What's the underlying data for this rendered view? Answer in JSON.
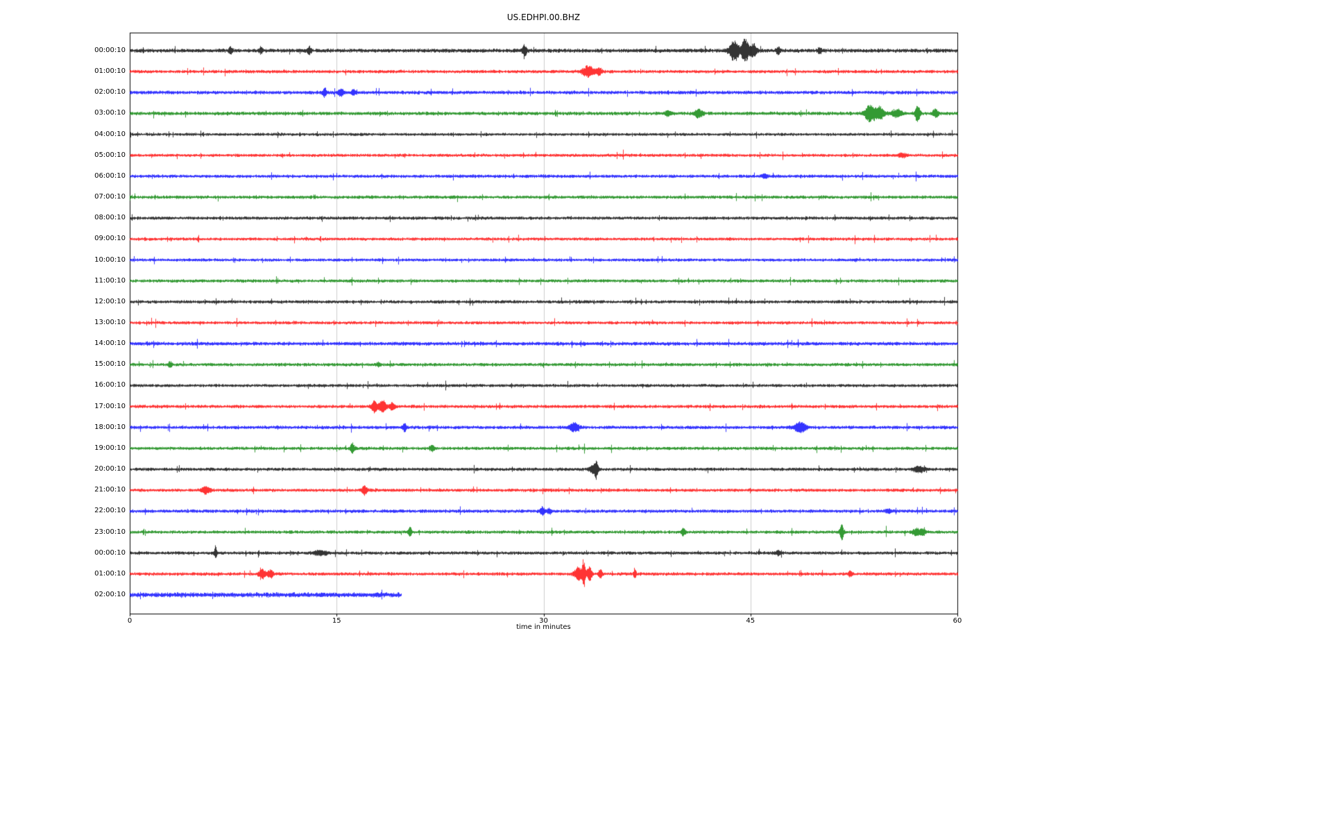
{
  "title": "US.EDHPI.00.BHZ",
  "chart_data": {
    "type": "line",
    "subtype": "helicorder-dayplot",
    "title": "US.EDHPI.00.BHZ",
    "xlabel": "time in minutes",
    "xlim": [
      0,
      60
    ],
    "x_ticks": [
      0,
      15,
      30,
      45,
      60
    ],
    "grid": "vertical-light",
    "legend": "none",
    "grid_color": "#cccccc",
    "frame_color": "#000000",
    "color_cycle": [
      "#000000",
      "#ff0000",
      "#0000ff",
      "#008000"
    ],
    "rows": [
      {
        "label": "00:00:10",
        "color": "#000000",
        "end": 60,
        "noise": 1.2,
        "events": [
          {
            "t": 7.3,
            "amp": 6,
            "w": 0.08
          },
          {
            "t": 9.5,
            "amp": 5,
            "w": 0.08
          },
          {
            "t": 13.0,
            "amp": 5,
            "w": 0.1
          },
          {
            "t": 28.6,
            "amp": 8,
            "w": 0.12
          },
          {
            "t": 43.8,
            "amp": 14,
            "w": 0.25
          },
          {
            "t": 44.6,
            "amp": 16,
            "w": 0.2
          },
          {
            "t": 45.2,
            "amp": 10,
            "w": 0.15
          },
          {
            "t": 47.0,
            "amp": 6,
            "w": 0.1
          },
          {
            "t": 50.0,
            "amp": 4,
            "w": 0.1
          }
        ]
      },
      {
        "label": "01:00:10",
        "color": "#ff0000",
        "end": 60,
        "noise": 1.0,
        "events": [
          {
            "t": 33.2,
            "amp": 8,
            "w": 0.3
          },
          {
            "t": 34.0,
            "amp": 5,
            "w": 0.15
          }
        ]
      },
      {
        "label": "02:00:10",
        "color": "#0000ff",
        "end": 60,
        "noise": 1.1,
        "events": [
          {
            "t": 14.1,
            "amp": 6,
            "w": 0.1
          },
          {
            "t": 15.3,
            "amp": 5,
            "w": 0.15
          },
          {
            "t": 16.2,
            "amp": 4,
            "w": 0.1
          }
        ]
      },
      {
        "label": "03:00:10",
        "color": "#008000",
        "end": 60,
        "noise": 1.1,
        "events": [
          {
            "t": 39.0,
            "amp": 4,
            "w": 0.15
          },
          {
            "t": 41.2,
            "amp": 6,
            "w": 0.2
          },
          {
            "t": 53.7,
            "amp": 12,
            "w": 0.3
          },
          {
            "t": 54.4,
            "amp": 9,
            "w": 0.2
          },
          {
            "t": 55.6,
            "amp": 5,
            "w": 0.3
          },
          {
            "t": 57.1,
            "amp": 14,
            "w": 0.12
          },
          {
            "t": 58.4,
            "amp": 6,
            "w": 0.15
          }
        ]
      },
      {
        "label": "04:00:10",
        "color": "#000000",
        "end": 60,
        "noise": 0.9,
        "events": []
      },
      {
        "label": "05:00:10",
        "color": "#ff0000",
        "end": 60,
        "noise": 0.95,
        "events": [
          {
            "t": 56.0,
            "amp": 3,
            "w": 0.2
          }
        ]
      },
      {
        "label": "06:00:10",
        "color": "#0000ff",
        "end": 60,
        "noise": 1.0,
        "events": [
          {
            "t": 46.0,
            "amp": 3,
            "w": 0.15
          }
        ]
      },
      {
        "label": "07:00:10",
        "color": "#008000",
        "end": 60,
        "noise": 1.0,
        "events": []
      },
      {
        "label": "08:00:10",
        "color": "#000000",
        "end": 60,
        "noise": 1.0,
        "events": []
      },
      {
        "label": "09:00:10",
        "color": "#ff0000",
        "end": 60,
        "noise": 0.95,
        "events": []
      },
      {
        "label": "10:00:10",
        "color": "#0000ff",
        "end": 60,
        "noise": 0.95,
        "events": []
      },
      {
        "label": "11:00:10",
        "color": "#008000",
        "end": 60,
        "noise": 1.0,
        "events": []
      },
      {
        "label": "12:00:10",
        "color": "#000000",
        "end": 60,
        "noise": 1.0,
        "events": []
      },
      {
        "label": "13:00:10",
        "color": "#ff0000",
        "end": 60,
        "noise": 0.95,
        "events": []
      },
      {
        "label": "14:00:10",
        "color": "#0000ff",
        "end": 60,
        "noise": 1.15,
        "events": []
      },
      {
        "label": "15:00:10",
        "color": "#008000",
        "end": 60,
        "noise": 1.0,
        "events": [
          {
            "t": 2.9,
            "amp": 4,
            "w": 0.1
          },
          {
            "t": 18.0,
            "amp": 3,
            "w": 0.1
          }
        ]
      },
      {
        "label": "16:00:10",
        "color": "#000000",
        "end": 60,
        "noise": 0.95,
        "events": []
      },
      {
        "label": "17:00:10",
        "color": "#ff0000",
        "end": 60,
        "noise": 1.0,
        "events": [
          {
            "t": 17.7,
            "amp": 9,
            "w": 0.15
          },
          {
            "t": 18.3,
            "amp": 8,
            "w": 0.2
          },
          {
            "t": 19.0,
            "amp": 5,
            "w": 0.15
          }
        ]
      },
      {
        "label": "18:00:10",
        "color": "#0000ff",
        "end": 60,
        "noise": 1.05,
        "events": [
          {
            "t": 19.9,
            "amp": 6,
            "w": 0.1
          },
          {
            "t": 32.2,
            "amp": 6,
            "w": 0.25
          },
          {
            "t": 48.6,
            "amp": 7,
            "w": 0.3
          }
        ]
      },
      {
        "label": "19:00:10",
        "color": "#008000",
        "end": 60,
        "noise": 1.0,
        "events": [
          {
            "t": 16.1,
            "amp": 8,
            "w": 0.1
          },
          {
            "t": 21.9,
            "amp": 4,
            "w": 0.12
          }
        ]
      },
      {
        "label": "20:00:10",
        "color": "#000000",
        "end": 60,
        "noise": 1.0,
        "events": [
          {
            "t": 33.6,
            "amp": 7,
            "w": 0.2
          },
          {
            "t": 33.8,
            "amp": 9,
            "w": 0.08
          },
          {
            "t": 57.2,
            "amp": 4,
            "w": 0.3
          }
        ]
      },
      {
        "label": "21:00:10",
        "color": "#ff0000",
        "end": 60,
        "noise": 1.0,
        "events": [
          {
            "t": 5.5,
            "amp": 5,
            "w": 0.25
          },
          {
            "t": 17.0,
            "amp": 6,
            "w": 0.15
          }
        ]
      },
      {
        "label": "22:00:10",
        "color": "#0000ff",
        "end": 60,
        "noise": 1.05,
        "events": [
          {
            "t": 29.9,
            "amp": 6,
            "w": 0.12
          },
          {
            "t": 30.4,
            "amp": 4,
            "w": 0.12
          },
          {
            "t": 55.0,
            "amp": 3,
            "w": 0.15
          }
        ]
      },
      {
        "label": "23:00:10",
        "color": "#008000",
        "end": 60,
        "noise": 1.0,
        "events": [
          {
            "t": 20.3,
            "amp": 8,
            "w": 0.08
          },
          {
            "t": 40.1,
            "amp": 5,
            "w": 0.12
          },
          {
            "t": 51.6,
            "amp": 11,
            "w": 0.1
          },
          {
            "t": 57.0,
            "amp": 5,
            "w": 0.2
          },
          {
            "t": 57.5,
            "amp": 4,
            "w": 0.15
          }
        ]
      },
      {
        "label": "00:00:10",
        "color": "#000000",
        "end": 60,
        "noise": 1.0,
        "events": [
          {
            "t": 6.2,
            "amp": 8,
            "w": 0.06
          },
          {
            "t": 13.8,
            "amp": 3,
            "w": 0.4
          },
          {
            "t": 47.0,
            "amp": 3,
            "w": 0.15
          }
        ]
      },
      {
        "label": "01:00:10",
        "color": "#ff0000",
        "end": 60,
        "noise": 1.0,
        "events": [
          {
            "t": 9.6,
            "amp": 6,
            "w": 0.2
          },
          {
            "t": 10.2,
            "amp": 5,
            "w": 0.15
          },
          {
            "t": 32.5,
            "amp": 10,
            "w": 0.2
          },
          {
            "t": 32.9,
            "amp": 22,
            "w": 0.08
          },
          {
            "t": 33.3,
            "amp": 12,
            "w": 0.12
          },
          {
            "t": 34.1,
            "amp": 6,
            "w": 0.1
          },
          {
            "t": 36.6,
            "amp": 8,
            "w": 0.07
          },
          {
            "t": 52.2,
            "amp": 4,
            "w": 0.1
          }
        ]
      },
      {
        "label": "02:00:10",
        "color": "#0000ff",
        "end": 19.7,
        "noise": 1.5,
        "events": []
      }
    ]
  }
}
